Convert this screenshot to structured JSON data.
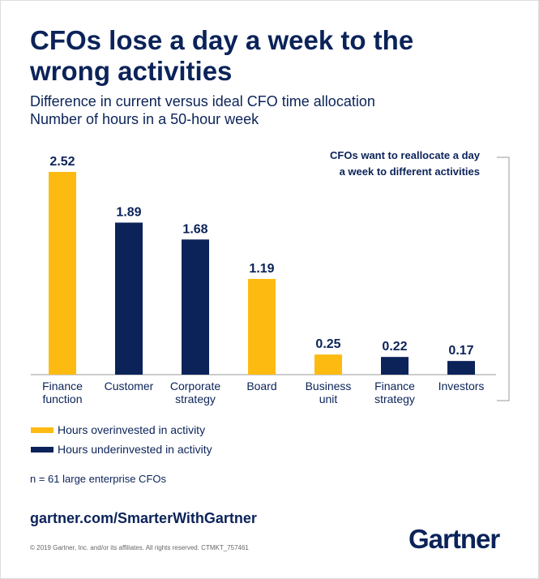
{
  "chart_data": {
    "type": "bar",
    "title": "CFOs lose a day a week to the wrong activities",
    "subtitle": [
      "Difference in current versus ideal CFO time allocation",
      "Number of hours in a 50-hour week"
    ],
    "categories": [
      "Finance function",
      "Customer",
      "Corporate strategy",
      "Board",
      "Business unit",
      "Finance strategy",
      "Investors"
    ],
    "series": [
      {
        "name": "Hours overinvested in activity",
        "color": "#fdbb12",
        "values": [
          2.52,
          null,
          null,
          1.19,
          0.25,
          null,
          null
        ]
      },
      {
        "name": "Hours underinvested in activity",
        "color": "#0b2359",
        "values": [
          null,
          1.89,
          1.68,
          null,
          null,
          0.22,
          0.17
        ]
      }
    ],
    "annotation": "CFOs want to reallocate a day a week to different activities",
    "note": "n = 61 large enterprise CFOs",
    "url": "gartner.com/SmarterWithGartner",
    "copyright": "© 2019 Gartner, Inc. and/or its affiliates. All rights reserved. CTMKT_757461",
    "logo": "Gartner"
  }
}
